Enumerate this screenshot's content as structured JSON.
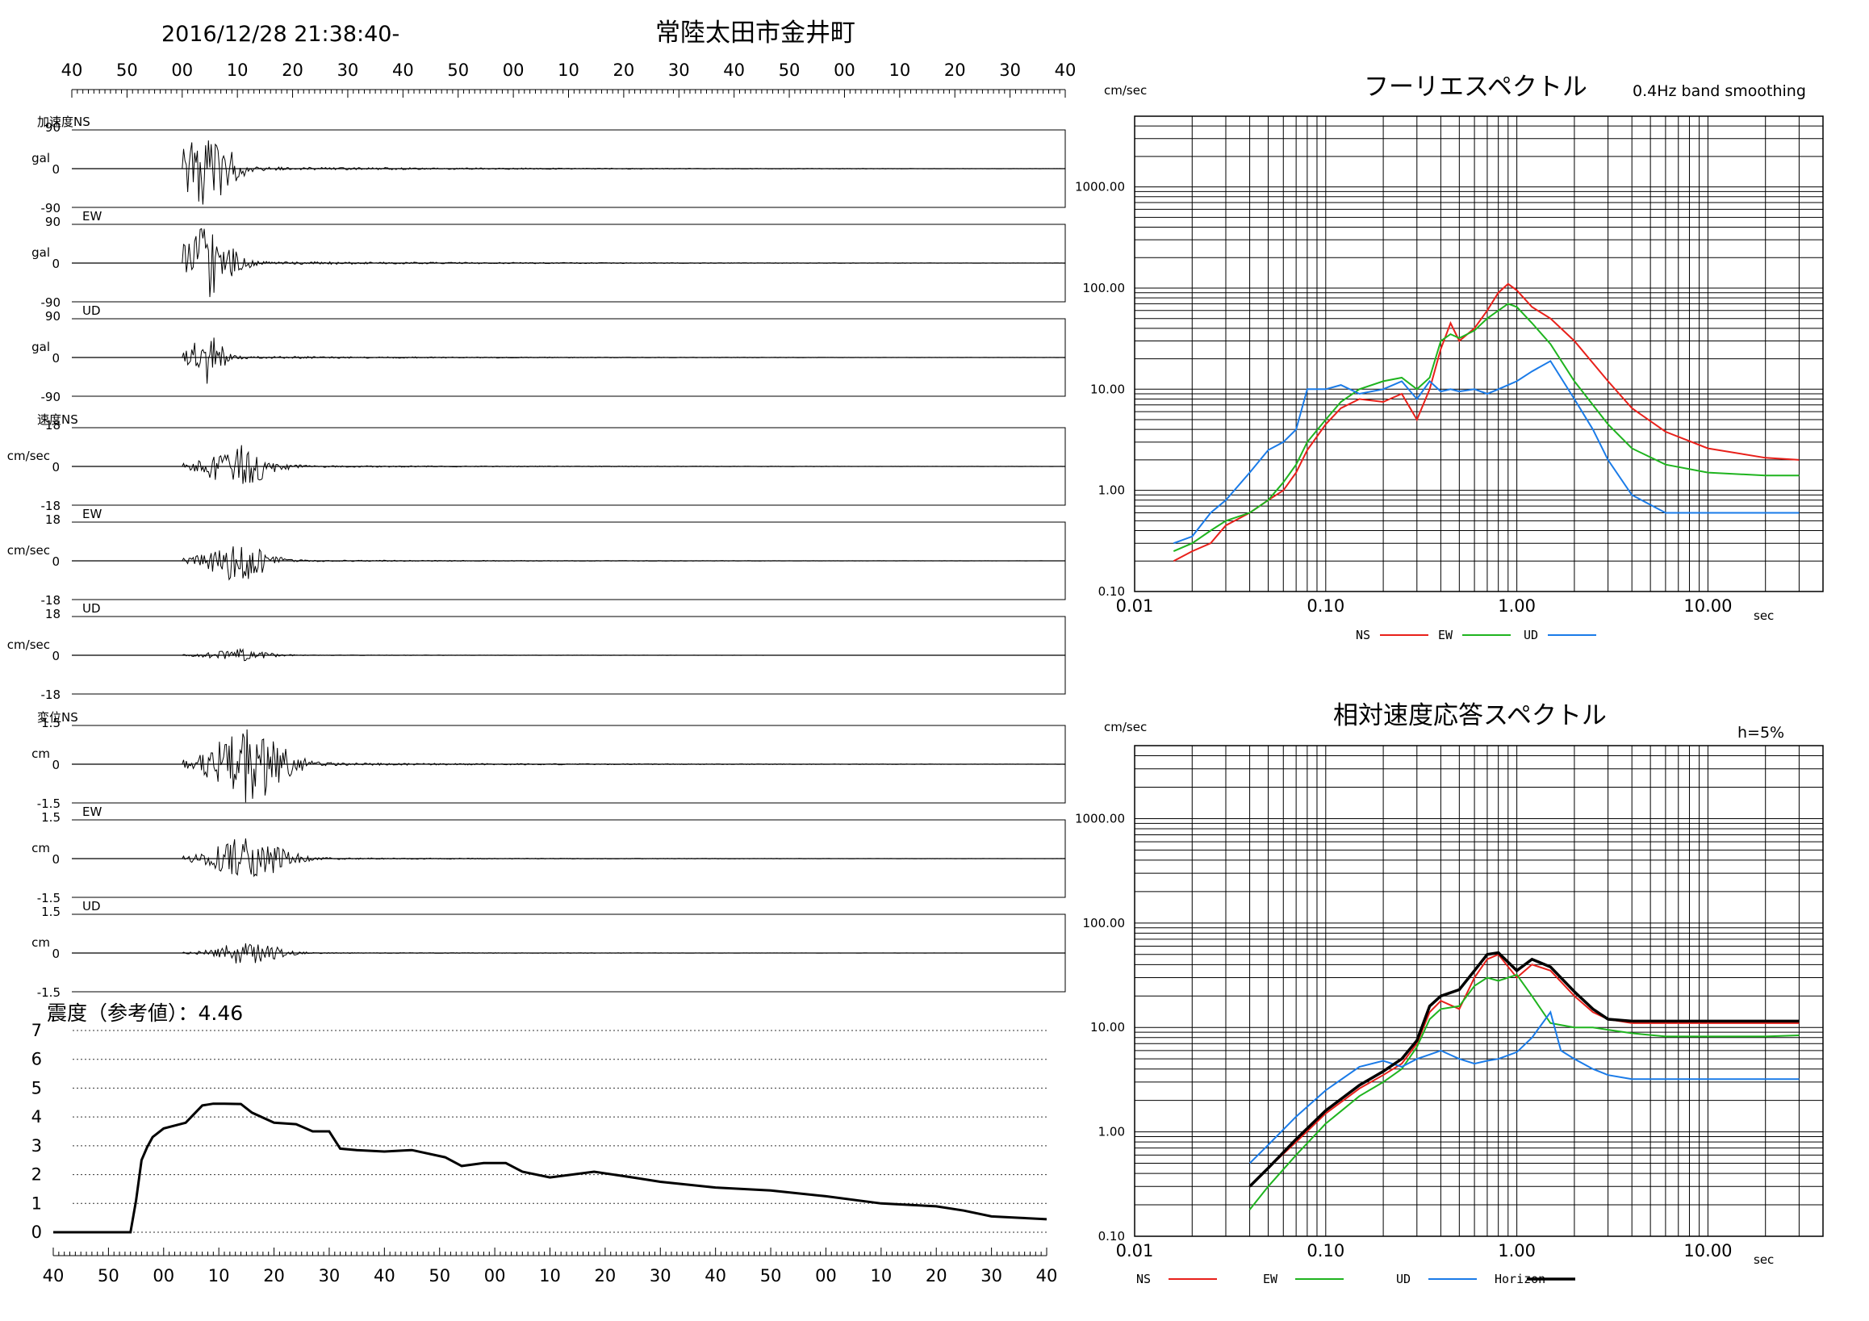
{
  "header": {
    "datetime": "2016/12/28 21:38:40-",
    "station": "常陸太田市金井町"
  },
  "time_axis_labels": [
    "40",
    "50",
    "00",
    "10",
    "20",
    "30",
    "40",
    "50",
    "00",
    "10",
    "20",
    "30",
    "40",
    "50",
    "00",
    "10",
    "20",
    "30",
    "40"
  ],
  "waveforms": {
    "acceleration": {
      "group_label": "加速度NS",
      "unit": "gal",
      "max": "90",
      "min": "-90",
      "zero": "0",
      "components": [
        {
          "label": "NS",
          "amp": 0.95,
          "t0": 4.5,
          "spread": 5
        },
        {
          "label": "EW",
          "amp": 0.9,
          "t0": 4.5,
          "spread": 5
        },
        {
          "label": "UD",
          "amp": 0.65,
          "t0": 4.5,
          "spread": 3
        }
      ]
    },
    "velocity": {
      "group_label": "速度NS",
      "unit": "cm/sec",
      "max": "18",
      "min": "-18",
      "zero": "0",
      "components": [
        {
          "label": "NS",
          "amp": 0.6,
          "t0": 10,
          "spread": 6
        },
        {
          "label": "EW",
          "amp": 0.5,
          "t0": 10,
          "spread": 6
        },
        {
          "label": "UD",
          "amp": 0.15,
          "t0": 10,
          "spread": 6
        }
      ]
    },
    "displacement": {
      "group_label": "変位NS",
      "unit": "cm",
      "max": "1.5",
      "min": "-1.5",
      "zero": "0",
      "components": [
        {
          "label": "NS",
          "amp": 0.95,
          "t0": 12,
          "spread": 7
        },
        {
          "label": "EW",
          "amp": 0.55,
          "t0": 12,
          "spread": 7
        },
        {
          "label": "UD",
          "amp": 0.3,
          "t0": 12,
          "spread": 6
        }
      ]
    }
  },
  "intensity": {
    "label": "震度（参考値）：4.46",
    "y_ticks": [
      "0",
      "1",
      "2",
      "3",
      "4",
      "5",
      "6",
      "7"
    ],
    "chart_data": {
      "type": "line",
      "xlabel": "",
      "ylabel": "",
      "ylim": [
        0,
        7
      ],
      "series": [
        {
          "name": "",
          "t": [
            0,
            14,
            15,
            16,
            17,
            18,
            20,
            24,
            27,
            29,
            31,
            34,
            36,
            40,
            44,
            47,
            50,
            52,
            55,
            60,
            65,
            71,
            74,
            78,
            82,
            85,
            90,
            98,
            105,
            110,
            120,
            130,
            140,
            150,
            160,
            165,
            170,
            175,
            180
          ],
          "values": [
            0,
            0,
            1.1,
            2.5,
            2.95,
            3.3,
            3.6,
            3.8,
            4.4,
            4.46,
            4.46,
            4.45,
            4.15,
            3.8,
            3.75,
            3.5,
            3.5,
            2.9,
            2.85,
            2.8,
            2.85,
            2.6,
            2.3,
            2.4,
            2.4,
            2.1,
            1.9,
            2.1,
            1.9,
            1.75,
            1.55,
            1.45,
            1.25,
            1.0,
            0.9,
            0.75,
            0.55,
            0.5,
            0.45
          ]
        }
      ]
    }
  },
  "fourier": {
    "title": "フーリエスペクトル",
    "subtitle": "0.4Hz band smoothing",
    "ylabel": "cm/sec",
    "xlabel": "sec",
    "y_ticks": [
      "1000.00",
      "100.00",
      "10.00",
      "1.00",
      "0.10"
    ],
    "x_ticks": [
      "0.01",
      "0.10",
      "1.00",
      "10.00"
    ],
    "legend": [
      {
        "name": "NS",
        "color": "#e8201a"
      },
      {
        "name": "EW",
        "color": "#1fb41f"
      },
      {
        "name": "UD",
        "color": "#1a7be8"
      }
    ],
    "chart_data": {
      "type": "line",
      "x_scale": "log",
      "y_scale": "log",
      "xlim": [
        0.01,
        40
      ],
      "ylim": [
        0.1,
        5000
      ],
      "series": [
        {
          "name": "NS",
          "color": "#e8201a",
          "x": [
            0.016,
            0.02,
            0.025,
            0.03,
            0.04,
            0.05,
            0.06,
            0.07,
            0.08,
            0.1,
            0.12,
            0.15,
            0.2,
            0.25,
            0.3,
            0.35,
            0.4,
            0.45,
            0.5,
            0.6,
            0.7,
            0.8,
            0.9,
            1.0,
            1.2,
            1.5,
            2.0,
            3.0,
            4.0,
            6.0,
            10.0,
            20.0,
            30.0
          ],
          "y": [
            0.2,
            0.25,
            0.3,
            0.45,
            0.6,
            0.8,
            1.0,
            1.5,
            2.5,
            4.5,
            6.5,
            8.0,
            7.5,
            9.0,
            5.0,
            10.0,
            25.0,
            45.0,
            30.0,
            40.0,
            60.0,
            90.0,
            110.0,
            95.0,
            65.0,
            50.0,
            30.0,
            12.0,
            6.5,
            3.8,
            2.6,
            2.1,
            2.0
          ]
        },
        {
          "name": "EW",
          "color": "#1fb41f",
          "x": [
            0.016,
            0.02,
            0.025,
            0.03,
            0.04,
            0.05,
            0.06,
            0.07,
            0.08,
            0.1,
            0.12,
            0.15,
            0.2,
            0.25,
            0.3,
            0.35,
            0.4,
            0.45,
            0.5,
            0.6,
            0.7,
            0.8,
            0.9,
            1.0,
            1.2,
            1.5,
            2.0,
            3.0,
            4.0,
            6.0,
            10.0,
            20.0,
            30.0
          ],
          "y": [
            0.25,
            0.3,
            0.4,
            0.5,
            0.6,
            0.8,
            1.2,
            1.8,
            3.0,
            5.0,
            7.5,
            10.0,
            12.0,
            13.0,
            10.0,
            13.0,
            30.0,
            35.0,
            32.0,
            38.0,
            50.0,
            60.0,
            70.0,
            65.0,
            45.0,
            28.0,
            12.0,
            4.5,
            2.6,
            1.8,
            1.5,
            1.4,
            1.4
          ]
        },
        {
          "name": "UD",
          "color": "#1a7be8",
          "x": [
            0.016,
            0.02,
            0.025,
            0.03,
            0.04,
            0.05,
            0.06,
            0.07,
            0.08,
            0.1,
            0.12,
            0.15,
            0.2,
            0.25,
            0.3,
            0.35,
            0.4,
            0.45,
            0.5,
            0.6,
            0.7,
            0.8,
            0.9,
            1.0,
            1.2,
            1.5,
            2.0,
            2.5,
            3.0,
            4.0,
            6.0,
            10.0,
            20.0,
            30.0
          ],
          "y": [
            0.3,
            0.35,
            0.6,
            0.8,
            1.5,
            2.5,
            3.0,
            4.0,
            10.0,
            10.0,
            11.0,
            9.0,
            10.0,
            12.0,
            8.0,
            12.0,
            9.5,
            10.0,
            9.5,
            10.0,
            9.0,
            10.0,
            11.0,
            12.0,
            15.0,
            19.0,
            8.0,
            4.0,
            2.0,
            0.9,
            0.6,
            0.6,
            0.6,
            0.6
          ]
        }
      ]
    }
  },
  "response": {
    "title": "相対速度応答スペクトル",
    "damping": "h=5%",
    "ylabel": "cm/sec",
    "xlabel": "sec",
    "y_ticks": [
      "1000.00",
      "100.00",
      "10.00",
      "1.00",
      "0.10"
    ],
    "x_ticks": [
      "0.01",
      "0.10",
      "1.00",
      "10.00"
    ],
    "legend": [
      {
        "name": "NS",
        "color": "#e8201a"
      },
      {
        "name": "EW",
        "color": "#1fb41f"
      },
      {
        "name": "UD",
        "color": "#1a7be8"
      },
      {
        "name": "Horizon",
        "color": "#000000"
      }
    ],
    "chart_data": {
      "type": "line",
      "x_scale": "log",
      "y_scale": "log",
      "xlim": [
        0.01,
        40
      ],
      "ylim": [
        0.1,
        5000
      ],
      "series": [
        {
          "name": "NS",
          "color": "#e8201a",
          "x": [
            0.04,
            0.05,
            0.07,
            0.1,
            0.15,
            0.2,
            0.25,
            0.3,
            0.35,
            0.4,
            0.5,
            0.6,
            0.7,
            0.8,
            1.0,
            1.2,
            1.5,
            2.0,
            2.5,
            3.0,
            4.0,
            6.0,
            10.0,
            20.0,
            30.0
          ],
          "y": [
            0.3,
            0.45,
            0.8,
            1.5,
            2.6,
            3.5,
            4.5,
            7.0,
            14.0,
            18.0,
            15.0,
            30.0,
            45.0,
            50.0,
            30.0,
            40.0,
            35.0,
            20.0,
            14.0,
            12.0,
            11.0,
            11.0,
            11.0,
            11.0,
            11.0
          ]
        },
        {
          "name": "EW",
          "color": "#1fb41f",
          "x": [
            0.04,
            0.05,
            0.07,
            0.1,
            0.15,
            0.2,
            0.25,
            0.3,
            0.35,
            0.4,
            0.5,
            0.6,
            0.7,
            0.8,
            1.0,
            1.2,
            1.5,
            2.0,
            2.5,
            3.0,
            4.0,
            6.0,
            10.0,
            20.0,
            30.0
          ],
          "y": [
            0.18,
            0.3,
            0.6,
            1.2,
            2.2,
            3.0,
            4.0,
            6.5,
            12.0,
            15.0,
            16.0,
            25.0,
            30.0,
            28.0,
            32.0,
            20.0,
            11.0,
            10.0,
            10.0,
            9.5,
            8.8,
            8.2,
            8.2,
            8.2,
            8.4
          ]
        },
        {
          "name": "UD",
          "color": "#1a7be8",
          "x": [
            0.04,
            0.05,
            0.07,
            0.1,
            0.15,
            0.2,
            0.25,
            0.3,
            0.35,
            0.4,
            0.5,
            0.6,
            0.7,
            0.8,
            1.0,
            1.2,
            1.5,
            1.7,
            2.0,
            2.5,
            3.0,
            4.0,
            6.0,
            10.0,
            20.0,
            30.0
          ],
          "y": [
            0.5,
            0.75,
            1.4,
            2.5,
            4.2,
            4.8,
            4.2,
            5.0,
            5.5,
            6.0,
            5.0,
            4.5,
            4.8,
            5.0,
            5.8,
            8.0,
            14.0,
            6.0,
            5.0,
            4.0,
            3.5,
            3.2,
            3.2,
            3.2,
            3.2,
            3.2
          ]
        },
        {
          "name": "Horizon",
          "color": "#000000",
          "x": [
            0.04,
            0.05,
            0.07,
            0.1,
            0.15,
            0.2,
            0.25,
            0.3,
            0.35,
            0.4,
            0.5,
            0.6,
            0.7,
            0.8,
            1.0,
            1.2,
            1.5,
            2.0,
            2.5,
            3.0,
            4.0,
            6.0,
            10.0,
            20.0,
            30.0
          ],
          "y": [
            0.3,
            0.45,
            0.85,
            1.6,
            2.8,
            3.8,
            5.0,
            7.5,
            16.0,
            20.0,
            23.0,
            35.0,
            50.0,
            52.0,
            35.0,
            45.0,
            38.0,
            22.0,
            15.0,
            12.0,
            11.5,
            11.5,
            11.5,
            11.5,
            11.5
          ]
        }
      ]
    }
  }
}
